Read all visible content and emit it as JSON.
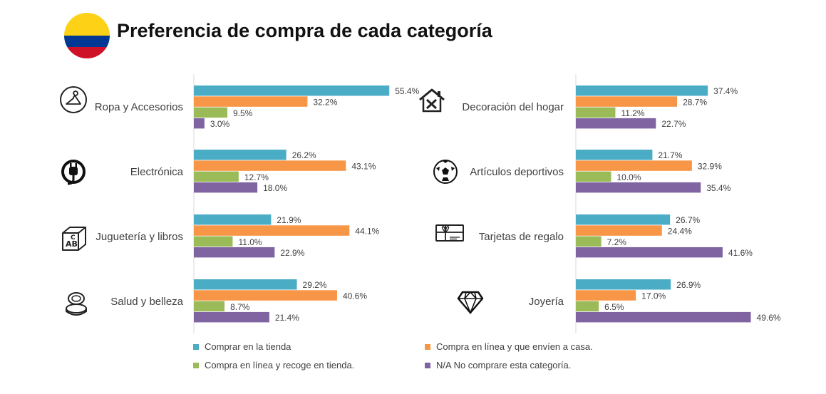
{
  "header": {
    "title": "Preferencia de compra de cada categoría"
  },
  "colors": {
    "tienda": "#4BACC6",
    "envio": "#F79646",
    "recoge": "#9BBB59",
    "na": "#8064A2",
    "flag_yellow": "#FCD116",
    "flag_blue": "#003893",
    "flag_red": "#CE1126"
  },
  "chart_data": {
    "type": "bar",
    "orientation": "horizontal",
    "value_format": "percent",
    "xlim": [
      0,
      60
    ],
    "series": [
      {
        "name": "Comprar en la tienda",
        "color": "#4BACC6"
      },
      {
        "name": "Compra en línea y que envíen a casa.",
        "color": "#F79646"
      },
      {
        "name": "Compra en línea y recoge en tienda.",
        "color": "#9BBB59"
      },
      {
        "name": "N/A No comprare esta categoría.",
        "color": "#8064A2"
      }
    ],
    "panels": [
      {
        "categories": [
          "Ropa y Accesorios",
          "Electrónica",
          "Juguetería y libros",
          "Salud y belleza"
        ],
        "icons": [
          "hanger-icon",
          "plug-icon",
          "toy-blocks-icon",
          "compact-mirror-icon"
        ],
        "values": [
          [
            55.4,
            32.2,
            9.5,
            3.0
          ],
          [
            26.2,
            43.1,
            12.7,
            18.0
          ],
          [
            21.9,
            44.1,
            11.0,
            22.9
          ],
          [
            29.2,
            40.6,
            8.7,
            21.4
          ]
        ]
      },
      {
        "categories": [
          "Decoración del hogar",
          "Artículos deportivos",
          "Tarjetas de regalo",
          "Joyería"
        ],
        "icons": [
          "house-tools-icon",
          "soccer-ball-icon",
          "gift-card-icon",
          "diamond-icon"
        ],
        "values": [
          [
            37.4,
            28.7,
            11.2,
            22.7
          ],
          [
            21.7,
            32.9,
            10.0,
            35.4
          ],
          [
            26.7,
            24.4,
            7.2,
            41.6
          ],
          [
            26.9,
            17.0,
            6.5,
            49.6
          ]
        ]
      }
    ]
  },
  "legend": [
    {
      "label": "Comprar en la tienda",
      "color": "#4BACC6"
    },
    {
      "label": "Compra en línea y que envíen a casa.",
      "color": "#F79646"
    },
    {
      "label": "Compra en línea y recoge en tienda.",
      "color": "#9BBB59"
    },
    {
      "label": "N/A No comprare esta categoría.",
      "color": "#8064A2"
    }
  ]
}
